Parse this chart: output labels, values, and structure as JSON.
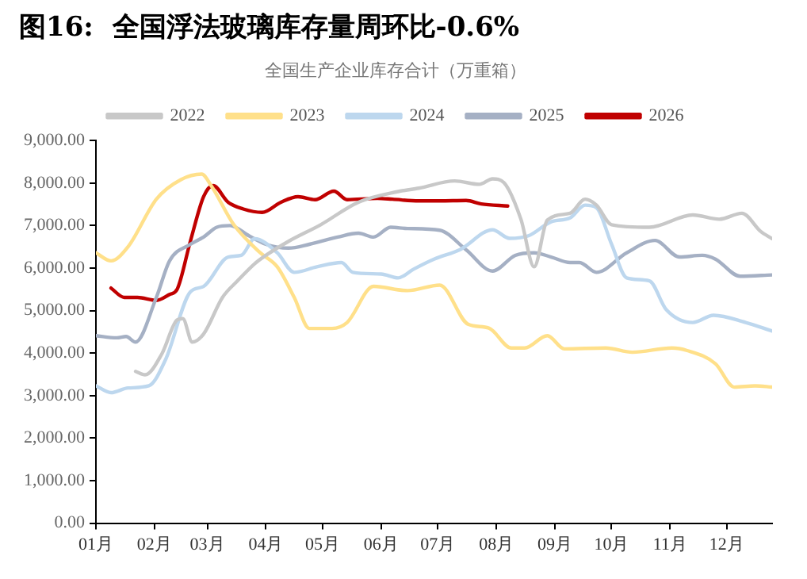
{
  "chart_data": {
    "type": "line",
    "title": "图16:  全国浮法玻璃库存量周环比-0.6%",
    "subtitle": "全国生产企业库存合计（万重箱）",
    "xlim": [
      "--01-01",
      "--12-25"
    ],
    "xticks": [
      {
        "value": "--01-01",
        "label": "01月"
      },
      {
        "value": "--02-01",
        "label": "02月"
      },
      {
        "value": "--03-01",
        "label": "03月"
      },
      {
        "value": "--04-01",
        "label": "04月"
      },
      {
        "value": "--05-01",
        "label": "05月"
      },
      {
        "value": "--06-01",
        "label": "06月"
      },
      {
        "value": "--07-01",
        "label": "07月"
      },
      {
        "value": "--08-01",
        "label": "08月"
      },
      {
        "value": "--09-01",
        "label": "09月"
      },
      {
        "value": "--10-01",
        "label": "10月"
      },
      {
        "value": "--11-01",
        "label": "11月"
      },
      {
        "value": "--12-01",
        "label": "12月"
      }
    ],
    "ylim": [
      0,
      9000
    ],
    "yticks": [
      {
        "value": 0,
        "label": "0.00"
      },
      {
        "value": 1000,
        "label": "1,000.00"
      },
      {
        "value": 2000,
        "label": "2,000.00"
      },
      {
        "value": 3000,
        "label": "3,000.00"
      },
      {
        "value": 4000,
        "label": "4,000.00"
      },
      {
        "value": 5000,
        "label": "5,000.00"
      },
      {
        "value": 6000,
        "label": "6,000.00"
      },
      {
        "value": 7000,
        "label": "7,000.00"
      },
      {
        "value": 8000,
        "label": "8,000.00"
      },
      {
        "value": 9000,
        "label": "9,000.00"
      }
    ],
    "grid": false,
    "legend": "top",
    "marker": "none",
    "line_style": "solid",
    "series": [
      {
        "name": "2022",
        "color": "#c8c8c8",
        "x": [
          "--01-22",
          "--01-27",
          "--02-05",
          "--02-13",
          "--02-16",
          "--02-21",
          "--02-27",
          "--03-09",
          "--03-17",
          "--03-26",
          "--04-01",
          "--04-13",
          "--04-30",
          "--05-20",
          "--06-10",
          "--06-21",
          "--07-10",
          "--07-23",
          "--07-30",
          "--08-05",
          "--08-14",
          "--08-21",
          "--08-28",
          "--09-09",
          "--09-17",
          "--09-23",
          "--10-01",
          "--10-21",
          "--11-13",
          "--11-27",
          "--12-09",
          "--12-19",
          "--12-25"
        ],
        "values": [
          3570,
          3490,
          3990,
          4780,
          4810,
          4260,
          4450,
          5310,
          5700,
          6100,
          6300,
          6630,
          7020,
          7550,
          7800,
          7880,
          8050,
          7970,
          8100,
          8010,
          7150,
          6030,
          7130,
          7290,
          7620,
          7480,
          7020,
          6960,
          7250,
          7150,
          7290,
          6860,
          6690
        ]
      },
      {
        "name": "2023",
        "color": "#ffe08a",
        "x": [
          "--01-01",
          "--01-09",
          "--01-18",
          "--02-02",
          "--02-15",
          "--02-26",
          "--03-03",
          "--03-15",
          "--03-29",
          "--04-07",
          "--04-16",
          "--04-24",
          "--05-06",
          "--05-14",
          "--05-28",
          "--06-15",
          "--07-02",
          "--07-17",
          "--07-28",
          "--08-09",
          "--08-16",
          "--08-28",
          "--09-06",
          "--09-28",
          "--10-12",
          "--11-02",
          "--11-10",
          "--11-25",
          "--12-05",
          "--12-16",
          "--12-25"
        ],
        "values": [
          6360,
          6170,
          6500,
          7620,
          8080,
          8210,
          7940,
          7020,
          6360,
          6030,
          5310,
          4580,
          4580,
          4720,
          5570,
          5470,
          5600,
          4680,
          4590,
          4120,
          4120,
          4410,
          4100,
          4120,
          4020,
          4120,
          4060,
          3750,
          3200,
          3230,
          3200
        ]
      },
      {
        "name": "2024",
        "color": "#bdd7ee",
        "x": [
          "--01-01",
          "--01-09",
          "--01-18",
          "--01-29",
          "--02-07",
          "--02-20",
          "--02-27",
          "--03-12",
          "--03-19",
          "--03-26",
          "--04-07",
          "--04-16",
          "--04-28",
          "--05-11",
          "--05-17",
          "--06-01",
          "--06-10",
          "--06-18",
          "--06-29",
          "--07-13",
          "--07-30",
          "--08-08",
          "--08-18",
          "--08-30",
          "--09-09",
          "--09-17",
          "--09-23",
          "--10-01",
          "--10-09",
          "--10-21",
          "--10-30",
          "--11-13",
          "--11-24",
          "--12-11",
          "--12-25"
        ],
        "values": [
          3230,
          3070,
          3180,
          3230,
          3860,
          5440,
          5570,
          6260,
          6300,
          6690,
          6360,
          5900,
          6030,
          6130,
          5900,
          5860,
          5770,
          5970,
          6210,
          6440,
          6900,
          6700,
          6760,
          7090,
          7180,
          7480,
          7420,
          6560,
          5770,
          5700,
          5020,
          4720,
          4890,
          4720,
          4520
        ]
      },
      {
        "name": "2025",
        "color": "#a5b0c4",
        "x": [
          "--01-01",
          "--01-12",
          "--01-17",
          "--01-22",
          "--02-02",
          "--02-09",
          "--02-20",
          "--02-27",
          "--03-06",
          "--03-13",
          "--03-23",
          "--04-01",
          "--04-13",
          "--04-24",
          "--05-09",
          "--05-20",
          "--05-28",
          "--06-06",
          "--06-15",
          "--07-02",
          "--07-16",
          "--07-30",
          "--08-11",
          "--08-21",
          "--08-30",
          "--09-09",
          "--09-14",
          "--09-23",
          "--10-09",
          "--10-24",
          "--11-06",
          "--11-18",
          "--11-25",
          "--12-08",
          "--12-25"
        ],
        "values": [
          4410,
          4360,
          4390,
          4260,
          5310,
          6170,
          6560,
          6730,
          6960,
          7000,
          6760,
          6560,
          6470,
          6560,
          6730,
          6820,
          6730,
          6960,
          6930,
          6890,
          6430,
          5930,
          6300,
          6360,
          6260,
          6130,
          6130,
          5900,
          6360,
          6650,
          6260,
          6300,
          6210,
          5810,
          5840
        ]
      },
      {
        "name": "2026",
        "color": "#c00000",
        "x": [
          "--01-09",
          "--01-16",
          "--01-23",
          "--02-02",
          "--02-09",
          "--02-13",
          "--02-20",
          "--02-27",
          "--03-04",
          "--03-12",
          "--03-20",
          "--03-30",
          "--04-09",
          "--04-18",
          "--04-27",
          "--05-07",
          "--05-14",
          "--05-30",
          "--06-07",
          "--06-21",
          "--07-02",
          "--07-16",
          "--07-24",
          "--08-07"
        ],
        "values": [
          5530,
          5310,
          5310,
          5240,
          5380,
          5500,
          6630,
          7680,
          7940,
          7550,
          7390,
          7310,
          7550,
          7680,
          7610,
          7810,
          7610,
          7640,
          7620,
          7580,
          7580,
          7590,
          7510,
          7460
        ]
      }
    ]
  }
}
